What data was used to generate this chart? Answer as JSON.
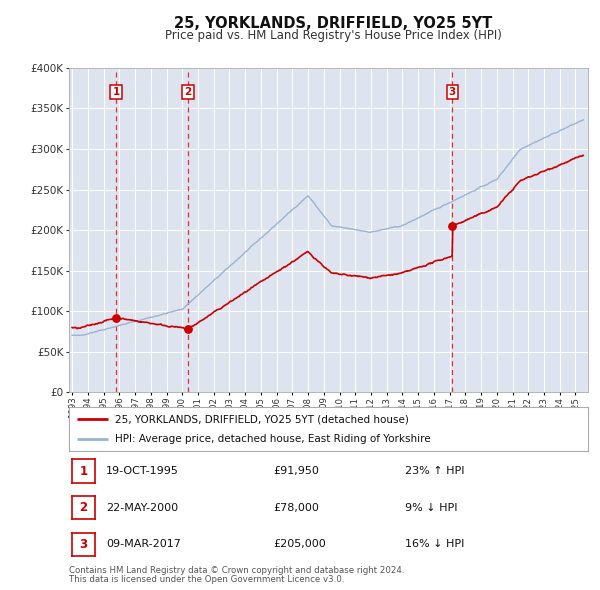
{
  "title": "25, YORKLANDS, DRIFFIELD, YO25 5YT",
  "subtitle": "Price paid vs. HM Land Registry's House Price Index (HPI)",
  "plot_bg_color": "#dde4f0",
  "grid_color": "#ffffff",
  "fig_bg_color": "#ffffff",
  "ylim": [
    0,
    400000
  ],
  "yticks": [
    0,
    50000,
    100000,
    150000,
    200000,
    250000,
    300000,
    350000,
    400000
  ],
  "xlim_start": 1992.8,
  "xlim_end": 2025.8,
  "sale_color": "#cc0000",
  "hpi_color": "#99b3d4",
  "vline_color": "#dd3333",
  "marker_color": "#cc0000",
  "transactions": [
    {
      "num": 1,
      "date_str": "19-OCT-1995",
      "year": 1995.79,
      "price": 91950
    },
    {
      "num": 2,
      "date_str": "22-MAY-2000",
      "year": 2000.38,
      "price": 78000
    },
    {
      "num": 3,
      "date_str": "09-MAR-2017",
      "year": 2017.18,
      "price": 205000
    }
  ],
  "legend_label_sale": "25, YORKLANDS, DRIFFIELD, YO25 5YT (detached house)",
  "legend_label_hpi": "HPI: Average price, detached house, East Riding of Yorkshire",
  "footnote1": "Contains HM Land Registry data © Crown copyright and database right 2024.",
  "footnote2": "This data is licensed under the Open Government Licence v3.0.",
  "table_rows": [
    {
      "num": 1,
      "date": "19-OCT-1995",
      "price": "£91,950",
      "hpi": "23% ↑ HPI"
    },
    {
      "num": 2,
      "date": "22-MAY-2000",
      "price": "£78,000",
      "hpi": "9% ↓ HPI"
    },
    {
      "num": 3,
      "date": "09-MAR-2017",
      "price": "£205,000",
      "hpi": "16% ↓ HPI"
    }
  ]
}
